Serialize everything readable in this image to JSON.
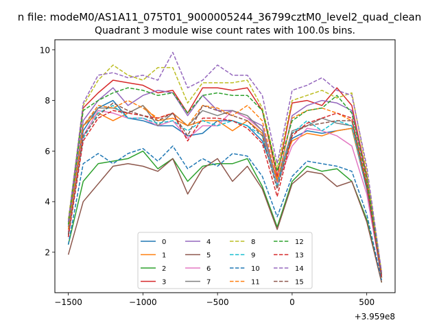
{
  "chart_data": {
    "type": "line",
    "suptitle": "n file: modeM0/AS1A11_075T01_9000005244_36799cztM0_level2_quad_clean",
    "title": "Quadrant 3 module wise count rates with 100.0s bins.",
    "xlabel": "",
    "ylabel": "",
    "offset_label": "+3.959e8",
    "xlim": [
      -1590,
      690
    ],
    "ylim": [
      0.4,
      10.4
    ],
    "xticks": [
      -1500,
      -1000,
      -500,
      0,
      500
    ],
    "xtick_labels": [
      "−1500",
      "−1000",
      "−500",
      "0",
      "500"
    ],
    "yticks": [
      2,
      4,
      6,
      8,
      10
    ],
    "ytick_labels": [
      "2",
      "4",
      "6",
      "8",
      "10"
    ],
    "grid": false,
    "legend_location": "lower-center",
    "x": [
      -1500,
      -1400,
      -1300,
      -1200,
      -1100,
      -1000,
      -900,
      -800,
      -700,
      -600,
      -500,
      -400,
      -300,
      -200,
      -100,
      0,
      100,
      200,
      300,
      400,
      500,
      600
    ],
    "series": [
      {
        "name": "0",
        "color": "#1f77b4",
        "dash": "solid",
        "values": [
          2.6,
          6.8,
          7.7,
          8.0,
          7.3,
          7.2,
          7.0,
          7.0,
          6.6,
          6.7,
          7.2,
          7.2,
          7.0,
          6.4,
          4.8,
          6.5,
          6.8,
          6.7,
          6.8,
          6.9,
          4.5,
          1.0
        ]
      },
      {
        "name": "1",
        "color": "#ff7f0e",
        "dash": "solid",
        "values": [
          2.8,
          7.0,
          7.5,
          7.2,
          7.5,
          7.8,
          7.2,
          7.3,
          7.0,
          7.2,
          7.2,
          6.8,
          7.2,
          6.7,
          4.9,
          6.4,
          6.7,
          6.6,
          6.8,
          6.9,
          4.6,
          1.0
        ]
      },
      {
        "name": "2",
        "color": "#2ca02c",
        "dash": "solid",
        "values": [
          2.3,
          4.8,
          5.5,
          5.6,
          5.7,
          6.0,
          5.3,
          5.7,
          4.8,
          5.4,
          5.5,
          5.5,
          5.7,
          4.6,
          3.0,
          4.8,
          5.4,
          5.2,
          5.3,
          4.8,
          3.3,
          0.8
        ]
      },
      {
        "name": "3",
        "color": "#d62728",
        "dash": "solid",
        "values": [
          3.2,
          7.7,
          8.3,
          8.8,
          8.7,
          8.6,
          8.3,
          8.4,
          7.5,
          8.5,
          8.5,
          8.4,
          8.5,
          7.6,
          5.0,
          7.9,
          8.0,
          7.8,
          8.5,
          7.8,
          5.0,
          1.1
        ]
      },
      {
        "name": "4",
        "color": "#9467bd",
        "dash": "solid",
        "values": [
          3.0,
          7.2,
          8.0,
          8.5,
          7.8,
          8.2,
          8.4,
          8.3,
          7.4,
          8.2,
          7.6,
          7.6,
          7.3,
          7.0,
          4.7,
          7.4,
          7.8,
          8.0,
          7.9,
          7.6,
          4.9,
          1.1
        ]
      },
      {
        "name": "5",
        "color": "#8c564b",
        "dash": "solid",
        "values": [
          1.9,
          4.0,
          4.7,
          5.4,
          5.5,
          5.4,
          5.2,
          5.7,
          4.3,
          5.3,
          5.7,
          4.8,
          5.4,
          4.5,
          2.9,
          4.7,
          5.2,
          5.1,
          4.6,
          4.8,
          3.2,
          0.8
        ]
      },
      {
        "name": "6",
        "color": "#e377c2",
        "dash": "solid",
        "values": [
          2.8,
          6.6,
          7.6,
          7.5,
          7.3,
          7.3,
          7.0,
          7.2,
          6.5,
          7.0,
          7.0,
          7.6,
          7.3,
          6.8,
          4.7,
          6.2,
          6.9,
          6.8,
          6.6,
          6.2,
          4.3,
          1.0
        ]
      },
      {
        "name": "7",
        "color": "#7f7f7f",
        "dash": "solid",
        "values": [
          3.0,
          7.0,
          7.7,
          7.7,
          7.5,
          7.8,
          7.0,
          7.5,
          7.0,
          7.6,
          7.4,
          7.6,
          7.4,
          6.8,
          4.8,
          6.8,
          7.0,
          7.3,
          7.1,
          7.0,
          4.7,
          1.0
        ]
      },
      {
        "name": "8",
        "color": "#bcbd22",
        "dash": "dashed",
        "values": [
          3.3,
          7.8,
          8.8,
          9.4,
          9.0,
          8.8,
          9.3,
          9.3,
          7.9,
          8.7,
          8.7,
          8.7,
          8.8,
          7.7,
          5.3,
          8.0,
          8.2,
          8.4,
          8.1,
          8.3,
          5.2,
          1.2
        ]
      },
      {
        "name": "9",
        "color": "#17becf",
        "dash": "dashed",
        "values": [
          2.7,
          6.5,
          7.5,
          7.8,
          7.3,
          7.3,
          7.1,
          7.2,
          6.8,
          7.2,
          7.0,
          7.2,
          7.0,
          6.6,
          4.6,
          6.7,
          7.2,
          6.8,
          7.2,
          7.0,
          4.6,
          1.0
        ]
      },
      {
        "name": "10",
        "color": "#1f77b4",
        "dash": "dashed",
        "values": [
          2.3,
          5.5,
          5.9,
          5.5,
          5.9,
          6.1,
          5.6,
          6.2,
          5.3,
          5.7,
          5.4,
          5.9,
          5.8,
          5.0,
          3.4,
          5.0,
          5.6,
          5.5,
          5.4,
          5.2,
          3.5,
          0.9
        ]
      },
      {
        "name": "11",
        "color": "#ff7f0e",
        "dash": "dashed",
        "values": [
          2.9,
          7.0,
          7.8,
          7.7,
          8.0,
          7.7,
          7.3,
          7.5,
          7.0,
          7.8,
          7.7,
          7.4,
          7.8,
          7.2,
          4.8,
          7.3,
          7.6,
          7.7,
          7.5,
          7.2,
          4.8,
          1.0
        ]
      },
      {
        "name": "12",
        "color": "#2ca02c",
        "dash": "dashed",
        "values": [
          3.1,
          7.6,
          8.0,
          8.3,
          8.5,
          8.4,
          8.2,
          8.3,
          7.5,
          8.2,
          8.3,
          8.2,
          8.2,
          7.6,
          5.2,
          7.2,
          7.6,
          7.7,
          8.2,
          7.5,
          4.9,
          1.1
        ]
      },
      {
        "name": "13",
        "color": "#d62728",
        "dash": "dashed",
        "values": [
          2.6,
          6.4,
          7.3,
          7.6,
          7.5,
          7.4,
          7.3,
          7.5,
          6.4,
          7.3,
          7.3,
          7.2,
          6.9,
          6.3,
          4.2,
          6.6,
          7.1,
          7.3,
          7.5,
          7.3,
          4.6,
          1.0
        ]
      },
      {
        "name": "14",
        "color": "#9467bd",
        "dash": "dashed",
        "values": [
          3.2,
          7.9,
          9.0,
          9.1,
          8.9,
          9.0,
          8.8,
          9.9,
          8.5,
          8.8,
          9.4,
          9.0,
          9.0,
          8.2,
          5.5,
          8.4,
          8.6,
          8.9,
          8.4,
          8.2,
          5.4,
          1.2
        ]
      },
      {
        "name": "15",
        "color": "#8c564b",
        "dash": "dashed",
        "values": [
          2.7,
          6.6,
          7.4,
          7.9,
          7.6,
          7.4,
          7.2,
          7.5,
          6.6,
          7.8,
          7.6,
          7.4,
          7.2,
          6.6,
          4.5,
          6.7,
          7.0,
          7.1,
          7.2,
          7.2,
          4.6,
          1.0
        ]
      }
    ]
  }
}
